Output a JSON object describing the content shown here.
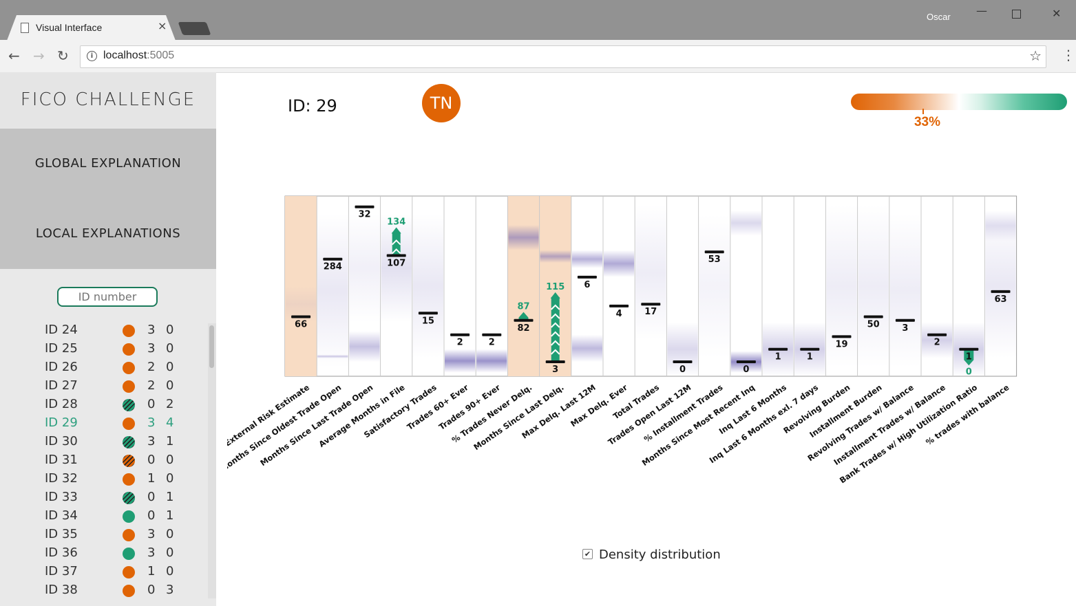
{
  "browser": {
    "tab_title": "Visual Interface",
    "tab_close": "×",
    "user": "Oscar",
    "url_host": "localhost",
    "url_port": ":5005",
    "back": "←",
    "forward": "→",
    "reload": "↻",
    "star": "☆",
    "info": "i",
    "minimize": "—",
    "close": "✕",
    "menu": "⋮"
  },
  "sidebar": {
    "title": "FICO CHALLENGE",
    "nav_global": "GLOBAL EXPLANATION",
    "nav_local": "LOCAL EXPLANATIONS",
    "id_placeholder": "ID number",
    "items": [
      {
        "label": "ID 24",
        "status": "orange",
        "n1": "3",
        "n2": "0",
        "selected": false
      },
      {
        "label": "ID 25",
        "status": "orange",
        "n1": "3",
        "n2": "0",
        "selected": false
      },
      {
        "label": "ID 26",
        "status": "orange",
        "n1": "2",
        "n2": "0",
        "selected": false
      },
      {
        "label": "ID 27",
        "status": "orange",
        "n1": "2",
        "n2": "0",
        "selected": false
      },
      {
        "label": "ID 28",
        "status": "green-hatched",
        "n1": "0",
        "n2": "2",
        "selected": false
      },
      {
        "label": "ID 29",
        "status": "orange",
        "n1": "3",
        "n2": "4",
        "selected": true
      },
      {
        "label": "ID 30",
        "status": "green-hatched",
        "n1": "3",
        "n2": "1",
        "selected": false
      },
      {
        "label": "ID 31",
        "status": "orange-hatched",
        "n1": "0",
        "n2": "0",
        "selected": false
      },
      {
        "label": "ID 32",
        "status": "orange",
        "n1": "1",
        "n2": "0",
        "selected": false
      },
      {
        "label": "ID 33",
        "status": "green-hatched",
        "n1": "0",
        "n2": "1",
        "selected": false
      },
      {
        "label": "ID 34",
        "status": "green",
        "n1": "0",
        "n2": "1",
        "selected": false
      },
      {
        "label": "ID 35",
        "status": "orange",
        "n1": "3",
        "n2": "0",
        "selected": false
      },
      {
        "label": "ID 36",
        "status": "green",
        "n1": "3",
        "n2": "0",
        "selected": false
      },
      {
        "label": "ID 37",
        "status": "orange",
        "n1": "1",
        "n2": "0",
        "selected": false
      },
      {
        "label": "ID 38",
        "status": "orange",
        "n1": "0",
        "n2": "3",
        "selected": false
      }
    ]
  },
  "main": {
    "record_id": "ID: 29",
    "prediction_badge": "TN",
    "probability_label": "33%",
    "probability": 0.33,
    "density_label": "Density distribution",
    "density_checked": true,
    "check_mark": "✔"
  },
  "colors": {
    "orange": "#e06405",
    "green": "#1f9e74",
    "purple": "#6f64b4",
    "highlight": "#f8dcc4"
  },
  "chart_data": {
    "type": "parallel-columns",
    "features": [
      {
        "label": "External Risk Estimate",
        "value": "66",
        "level": 0.33,
        "highlight": true,
        "density": [
          [
            0.3,
            0.5,
            0.08
          ]
        ]
      },
      {
        "label": "Months Since Oldest Trade Open",
        "value": "284",
        "level": 0.65,
        "density": [
          [
            0.05,
            0.9,
            0.15
          ],
          [
            0.1,
            0.12,
            0.35
          ]
        ]
      },
      {
        "label": "Months Since Last Trade Open",
        "value": "32",
        "level": 0.94,
        "density": [
          [
            0.08,
            0.25,
            0.4
          ],
          [
            0.3,
            0.9,
            0.1
          ]
        ]
      },
      {
        "label": "Average Months in File",
        "value": "107",
        "level": 0.67,
        "density": [
          [
            0.3,
            0.9,
            0.2
          ]
        ],
        "change": {
          "to": "134",
          "to_level": 0.83,
          "dir": "up",
          "shape": "chevrons"
        }
      },
      {
        "label": "Satisfactory Trades",
        "value": "15",
        "level": 0.35,
        "density": [
          [
            0.1,
            0.9,
            0.15
          ]
        ]
      },
      {
        "label": "Trades 60+ Ever",
        "value": "2",
        "level": 0.23,
        "density": [
          [
            0.02,
            0.15,
            0.7
          ]
        ]
      },
      {
        "label": "Trades 90+ Ever",
        "value": "2",
        "level": 0.23,
        "density": [
          [
            0.02,
            0.15,
            0.7
          ]
        ]
      },
      {
        "label": "% Trades Never Delq.",
        "value": "82",
        "level": 0.31,
        "highlight": true,
        "density": [
          [
            0.7,
            0.84,
            0.55
          ]
        ],
        "change": {
          "to": "87",
          "to_level": 0.36,
          "dir": "up",
          "shape": "arrow"
        }
      },
      {
        "label": "Months Since Last Delq.",
        "value": "3",
        "level": 0.08,
        "highlight": true,
        "density": [
          [
            0.63,
            0.7,
            0.5
          ]
        ],
        "change": {
          "to": "115",
          "to_level": 0.47,
          "dir": "up",
          "shape": "chevrons"
        }
      },
      {
        "label": "Max Delq. Last 12M",
        "value": "6",
        "level": 0.55,
        "density": [
          [
            0.6,
            0.7,
            0.5
          ],
          [
            0.08,
            0.23,
            0.45
          ]
        ]
      },
      {
        "label": "Max Delq. Ever",
        "value": "4",
        "level": 0.39,
        "density": [
          [
            0.55,
            0.7,
            0.55
          ]
        ]
      },
      {
        "label": "Total Trades",
        "value": "17",
        "level": 0.4,
        "density": [
          [
            0.2,
            0.95,
            0.12
          ]
        ]
      },
      {
        "label": "Trades Open Last 12M",
        "value": "0",
        "level": 0.08,
        "density": [
          [
            0.0,
            0.3,
            0.25
          ]
        ]
      },
      {
        "label": "% Installment Trades",
        "value": "53",
        "level": 0.69,
        "density": [
          [
            0.1,
            0.9,
            0.08
          ]
        ]
      },
      {
        "label": "Months Since Most Recent Inq",
        "value": "0",
        "level": 0.08,
        "density": [
          [
            0.02,
            0.14,
            0.75
          ],
          [
            0.78,
            0.92,
            0.25
          ]
        ]
      },
      {
        "label": "Inq Last 6 Months",
        "value": "1",
        "level": 0.15,
        "density": [
          [
            0.0,
            0.3,
            0.3
          ]
        ]
      },
      {
        "label": "Inq Last 6 Months exl. 7 days",
        "value": "1",
        "level": 0.15,
        "density": [
          [
            0.0,
            0.3,
            0.3
          ]
        ]
      },
      {
        "label": "Revolving Burden",
        "value": "19",
        "level": 0.22,
        "density": [
          [
            0.05,
            0.95,
            0.12
          ]
        ]
      },
      {
        "label": "Installment Burden",
        "value": "50",
        "level": 0.33,
        "density": [
          [
            0.05,
            0.95,
            0.12
          ]
        ]
      },
      {
        "label": "Revolving Trades w/ Balance",
        "value": "3",
        "level": 0.31,
        "density": [
          [
            0.05,
            0.9,
            0.12
          ]
        ]
      },
      {
        "label": "Installment Trades w/ Balance",
        "value": "2",
        "level": 0.23,
        "density": [
          [
            0.1,
            0.3,
            0.3
          ]
        ]
      },
      {
        "label": "Bank Trades w/ High Utilization Ratio",
        "value": "1",
        "level": 0.15,
        "density": [
          [
            0.0,
            0.3,
            0.3
          ]
        ],
        "change": {
          "to": "0",
          "to_level": 0.06,
          "dir": "down",
          "shape": "arrow"
        }
      },
      {
        "label": "% trades with balance",
        "value": "63",
        "level": 0.47,
        "density": [
          [
            0.1,
            0.9,
            0.15
          ],
          [
            0.75,
            0.92,
            0.2
          ]
        ]
      }
    ]
  }
}
